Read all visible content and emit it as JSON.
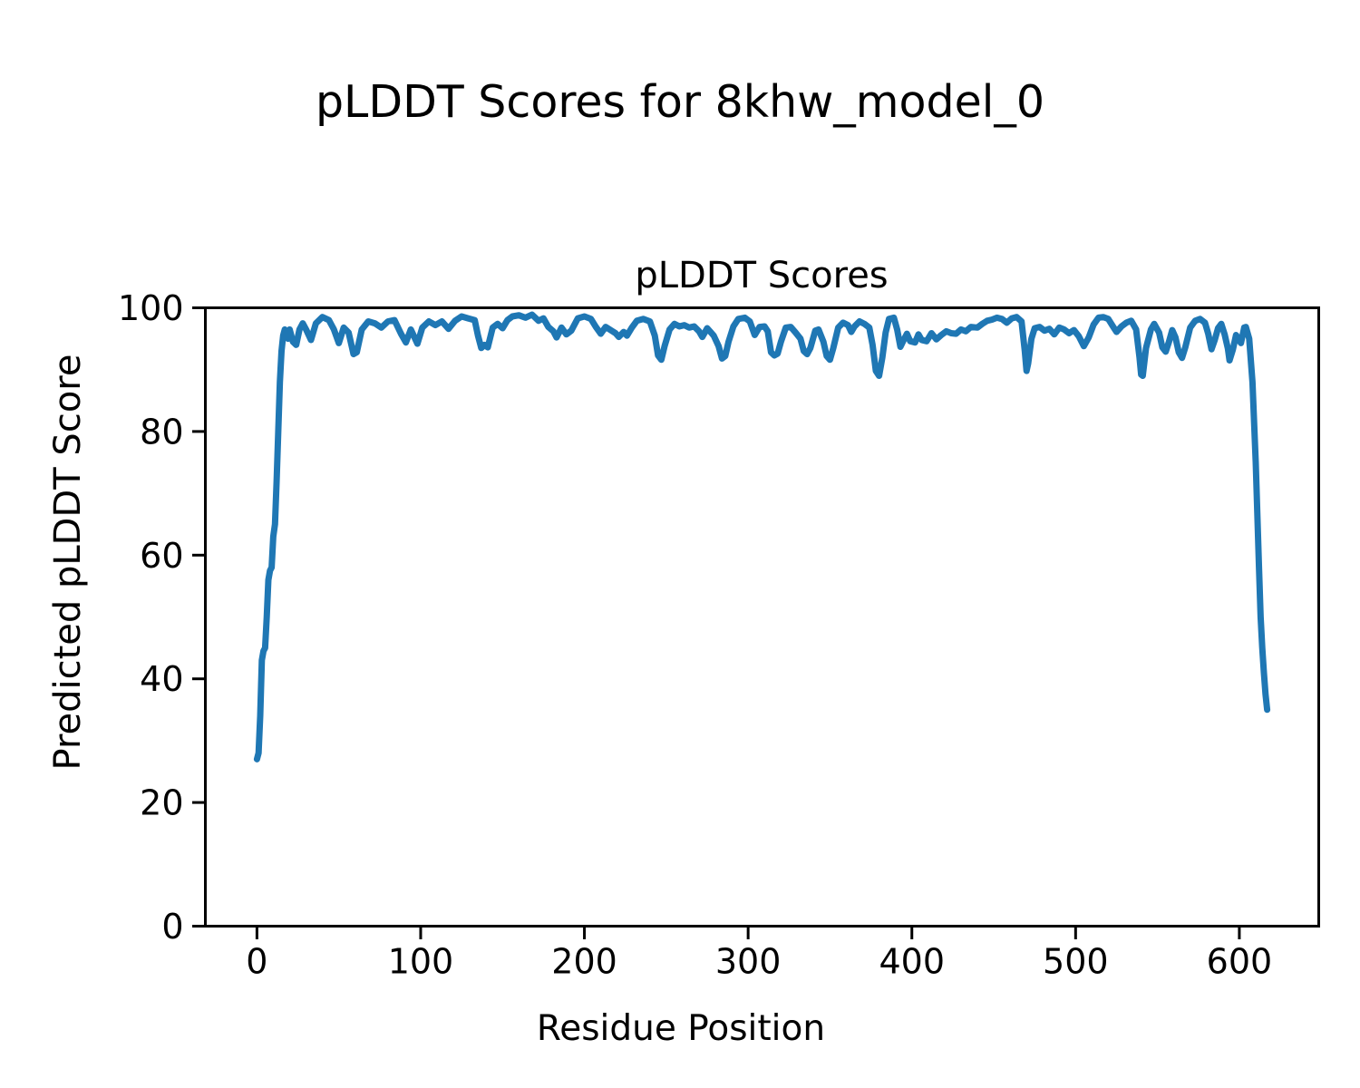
{
  "figure": {
    "suptitle": "pLDDT Scores for 8khw_model_0"
  },
  "chart_data": {
    "type": "line",
    "title": "pLDDT Scores",
    "xlabel": "Residue Position",
    "ylabel": "Predicted pLDDT Score",
    "xlim": [
      -31.5,
      648.5
    ],
    "ylim": [
      0,
      100
    ],
    "xticks": [
      0,
      100,
      200,
      300,
      400,
      500,
      600
    ],
    "yticks": [
      0,
      20,
      40,
      60,
      80,
      100
    ],
    "grid": false,
    "legend": null,
    "line_color": "#1f77b4",
    "background": "#ffffff",
    "series": [
      {
        "name": "pLDDT",
        "x": [
          0,
          1,
          2,
          3,
          4,
          5,
          6,
          7,
          8,
          9,
          10,
          11,
          12,
          13,
          14,
          15,
          16,
          17,
          18,
          19,
          20,
          22,
          24,
          26,
          28,
          30,
          33,
          36,
          40,
          44,
          47,
          50,
          53,
          56,
          59,
          61,
          64,
          68,
          72,
          76,
          80,
          84,
          88,
          91,
          94,
          98,
          101,
          105,
          109,
          113,
          117,
          121,
          125,
          129,
          133,
          135,
          137,
          139,
          141,
          144,
          147,
          150,
          153,
          156,
          160,
          164,
          168,
          172,
          175,
          178,
          181,
          183,
          186,
          189,
          192,
          196,
          200,
          204,
          207,
          210,
          213,
          216,
          219,
          221,
          224,
          226,
          229,
          232,
          236,
          240,
          243,
          245,
          247,
          249,
          252,
          255,
          258,
          261,
          264,
          267,
          270,
          272,
          275,
          277,
          279,
          282,
          284,
          286,
          288,
          291,
          294,
          298,
          301,
          304,
          307,
          310,
          312,
          314,
          316,
          318,
          320,
          323,
          326,
          329,
          332,
          334,
          336,
          338,
          341,
          343,
          346,
          348,
          350,
          352,
          355,
          358,
          361,
          363,
          365,
          368,
          371,
          374,
          376,
          378,
          380,
          382,
          384,
          386,
          389,
          391,
          393,
          395,
          397,
          399,
          402,
          404,
          406,
          409,
          412,
          415,
          418,
          421,
          424,
          427,
          430,
          433,
          436,
          440,
          443,
          446,
          449,
          452,
          455,
          458,
          461,
          464,
          467,
          469,
          470,
          471,
          473,
          475,
          478,
          481,
          484,
          487,
          490,
          493,
          496,
          499,
          502,
          505,
          508,
          511,
          514,
          517,
          520,
          523,
          525,
          528,
          531,
          534,
          537,
          539,
          540,
          541,
          543,
          546,
          548,
          551,
          553,
          555,
          557,
          559,
          561,
          563,
          565,
          567,
          570,
          573,
          576,
          579,
          581,
          583,
          585,
          587,
          589,
          591,
          593,
          594,
          596,
          598,
          600,
          601,
          603,
          604,
          606,
          608,
          610,
          612,
          613,
          614,
          615,
          616,
          617
        ],
        "y": [
          27,
          28,
          34,
          43,
          44.5,
          45,
          50,
          56,
          57.5,
          58,
          63,
          65,
          72,
          80,
          88,
          93,
          95.5,
          96.5,
          96,
          95,
          96.5,
          94.5,
          94,
          96.5,
          97.5,
          96.5,
          94.8,
          97.5,
          98.5,
          98,
          96.5,
          94.3,
          96.8,
          96,
          92.5,
          92.8,
          96.5,
          97.8,
          97.5,
          96.8,
          97.8,
          98,
          95.8,
          94.4,
          96.5,
          94.2,
          96.8,
          97.8,
          97.2,
          97.8,
          96.6,
          97.9,
          98.6,
          98.3,
          98,
          95.5,
          93.5,
          94,
          93.6,
          96.8,
          97.4,
          96.7,
          98,
          98.6,
          98.8,
          98.4,
          98.9,
          97.9,
          98.3,
          96.9,
          96.2,
          95.2,
          96.8,
          95.7,
          96.3,
          98.3,
          98.6,
          98.2,
          96.9,
          95.8,
          96.9,
          96.4,
          95.9,
          95.3,
          96.1,
          95.5,
          96.8,
          97.9,
          98.2,
          97.8,
          95.5,
          92.3,
          91.6,
          93.8,
          96.5,
          97.4,
          97,
          97.2,
          96.8,
          97,
          96.2,
          95.3,
          96.7,
          96.1,
          95.5,
          93.8,
          91.8,
          92.2,
          94.5,
          97,
          98.2,
          98.4,
          97.8,
          95.6,
          96.9,
          97,
          96.2,
          92.8,
          92.3,
          92.6,
          94.5,
          96.8,
          96.9,
          96,
          95,
          93,
          92.5,
          93.5,
          96.3,
          96.5,
          94.5,
          92.2,
          91.6,
          93.5,
          96.8,
          97.6,
          97.2,
          96.1,
          97,
          97.8,
          97.4,
          96.8,
          94,
          89.8,
          89,
          92,
          96,
          98.2,
          98.4,
          96.5,
          93.7,
          94.8,
          95.8,
          94.6,
          94.4,
          95.7,
          94.8,
          94.6,
          95.9,
          94.9,
          95.6,
          96.2,
          95.9,
          95.8,
          96.5,
          96.2,
          96.9,
          96.8,
          97.4,
          97.9,
          98.1,
          98.4,
          98.2,
          97.6,
          98.3,
          98.5,
          97.8,
          93,
          89.8,
          91,
          95,
          96.7,
          96.9,
          96.3,
          96.6,
          95.7,
          96.8,
          96.5,
          95.9,
          96.4,
          95.4,
          93.8,
          95.2,
          97.3,
          98.4,
          98.5,
          98.2,
          96.9,
          96.1,
          97,
          97.6,
          97.9,
          96.5,
          92,
          89.2,
          89,
          93.5,
          96.5,
          97.4,
          96,
          93.6,
          92.9,
          94.5,
          96.4,
          95.2,
          92.8,
          91.9,
          93.6,
          96.8,
          97.9,
          98.2,
          97.6,
          95.8,
          93.3,
          94.8,
          96.7,
          97.4,
          95.7,
          93.4,
          91.5,
          93.2,
          95.6,
          94.7,
          94.3,
          96.8,
          96.9,
          95,
          88,
          75,
          58,
          50,
          45,
          41,
          37.5,
          35
        ]
      }
    ]
  }
}
